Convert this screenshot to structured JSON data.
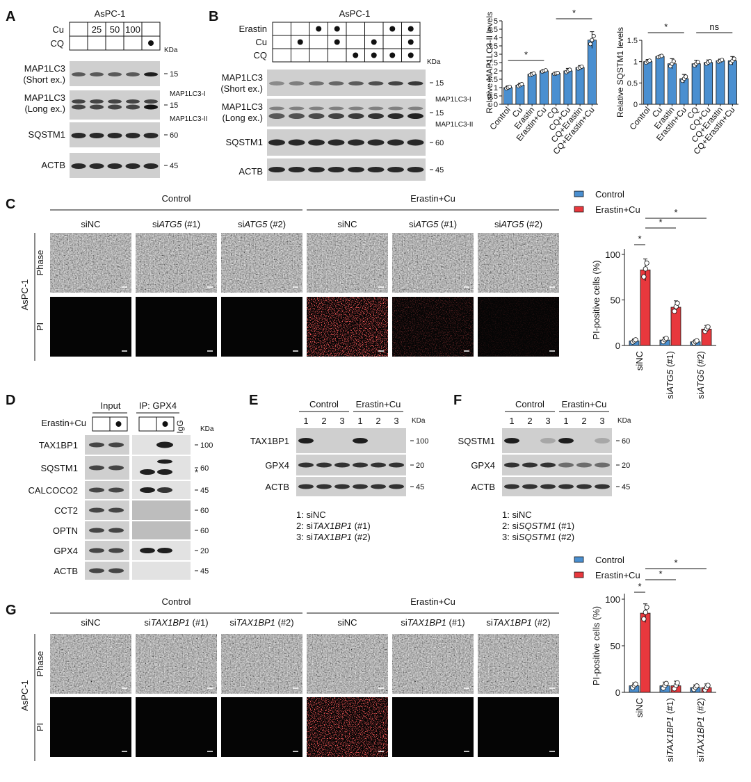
{
  "panelA": {
    "letter": "A",
    "cell_line": "AsPC-1",
    "row_labels": [
      "Cu",
      "CQ"
    ],
    "cu_doses": [
      "",
      "25",
      "50",
      "100",
      ""
    ],
    "cq_marks": [
      false,
      false,
      false,
      false,
      true
    ],
    "kda": "KDa",
    "blots": [
      {
        "label": "MAP1LC3",
        "sub": "(Short ex.)",
        "mw": "15"
      },
      {
        "label": "MAP1LC3",
        "sub": "(Long ex.)",
        "mw": "15",
        "band1": "MAP1LC3-I",
        "band2": "MAP1LC3-II"
      },
      {
        "label": "SQSTM1",
        "mw": "60"
      },
      {
        "label": "ACTB",
        "mw": "45"
      }
    ]
  },
  "panelB": {
    "letter": "B",
    "cell_line": "AsPC-1",
    "row_labels": [
      "Erastin",
      "Cu",
      "CQ"
    ],
    "erastin": [
      false,
      false,
      true,
      true,
      false,
      false,
      true,
      true
    ],
    "cu": [
      false,
      true,
      false,
      true,
      false,
      true,
      false,
      true
    ],
    "cq": [
      false,
      false,
      false,
      false,
      true,
      true,
      true,
      true
    ],
    "kda": "KDa",
    "blots": [
      {
        "label": "MAP1LC3",
        "sub": "(Short ex.)",
        "mw": "15"
      },
      {
        "label": "MAP1LC3",
        "sub": "(Long ex.)",
        "mw": "15",
        "band1": "MAP1LC3-I",
        "band2": "MAP1LC3-II"
      },
      {
        "label": "SQSTM1",
        "mw": "60"
      },
      {
        "label": "ACTB",
        "mw": "45"
      }
    ]
  },
  "chartB1": {
    "chart_data": {
      "type": "bar",
      "ylabel": "Relative MAP1LC3-II levels",
      "ylim": [
        0,
        5
      ],
      "yticks": [
        "0",
        "0.5",
        "1",
        "1.5",
        "2",
        "2.5",
        "3",
        "3.5",
        "4",
        "4.5",
        "5"
      ],
      "categories": [
        "Control",
        "Cu",
        "Erastin",
        "Erastin+Cu",
        "CQ",
        "CQ+Cu",
        "CQ+Erastin",
        "CQ+Erastin+Cu"
      ],
      "values": [
        1.0,
        1.15,
        1.8,
        2.0,
        1.85,
        2.0,
        2.2,
        3.85
      ],
      "errors": [
        0.1,
        0.12,
        0.1,
        0.08,
        0.05,
        0.15,
        0.12,
        0.5
      ],
      "significance": [
        {
          "from": 0,
          "to": 3,
          "label": "*"
        },
        {
          "from": 4,
          "to": 7,
          "label": "*"
        }
      ],
      "color": "#4a8fd0"
    }
  },
  "chartB2": {
    "chart_data": {
      "type": "bar",
      "ylabel": "Relative SQSTM1 levels",
      "ylim": [
        0,
        1.5
      ],
      "yticks": [
        "0",
        "0.5",
        "1",
        "1.5"
      ],
      "categories": [
        "Control",
        "Cu",
        "Erastin",
        "Erastin+Cu",
        "CQ",
        "CQ+Cu",
        "CQ+Erastin",
        "CQ+Erastin+Cu"
      ],
      "values": [
        1.0,
        1.12,
        0.95,
        0.6,
        0.95,
        0.98,
        1.02,
        1.02
      ],
      "errors": [
        0.05,
        0.03,
        0.12,
        0.1,
        0.08,
        0.06,
        0.04,
        0.1
      ],
      "significance": [
        {
          "from": 0,
          "to": 3,
          "label": "*"
        },
        {
          "from": 4,
          "to": 7,
          "label": "ns"
        }
      ],
      "color": "#4a8fd0"
    }
  },
  "panelC": {
    "letter": "C",
    "groups": [
      "Control",
      "Erastin+Cu"
    ],
    "columns": [
      {
        "pre": "siNC",
        "it": "",
        "post": ""
      },
      {
        "pre": "si",
        "it": "ATG5",
        "post": " (#1)"
      },
      {
        "pre": "si",
        "it": "ATG5",
        "post": " (#2)"
      },
      {
        "pre": "siNC",
        "it": "",
        "post": ""
      },
      {
        "pre": "si",
        "it": "ATG5",
        "post": " (#1)"
      },
      {
        "pre": "si",
        "it": "ATG5",
        "post": " (#2)"
      }
    ],
    "side_label": "AsPC-1",
    "rows": [
      "Phase",
      "PI"
    ],
    "pi_intensity": [
      0,
      0,
      0,
      1,
      0.3,
      0.1
    ]
  },
  "chartC": {
    "chart_data": {
      "type": "bar",
      "ylabel": "PI-positive cells (%)",
      "ylim": [
        0,
        100
      ],
      "yticks": [
        "0",
        "50",
        "100"
      ],
      "categories": [
        {
          "pre": "siNC",
          "it": "",
          "post": ""
        },
        {
          "pre": "si",
          "it": "ATG5",
          "post": " (#1)"
        },
        {
          "pre": "si",
          "it": "ATG5",
          "post": " (#2)"
        }
      ],
      "series": [
        {
          "name": "Control",
          "color": "#4a8fd0",
          "values": [
            5,
            6,
            4
          ],
          "errors": [
            2,
            3,
            2
          ]
        },
        {
          "name": "Erastin+Cu",
          "color": "#e8383d",
          "values": [
            83,
            42,
            18
          ],
          "errors": [
            12,
            7,
            4
          ]
        }
      ],
      "significance": [
        "*",
        "*",
        "*"
      ]
    }
  },
  "panelD": {
    "letter": "D",
    "input": "Input",
    "ip": "IP: GPX4",
    "treat": "Erastin+Cu",
    "igg": "IgG",
    "kda": "KDa",
    "star": "*",
    "rows": [
      {
        "label": "TAX1BP1",
        "mw": "100"
      },
      {
        "label": "SQSTM1",
        "mw": "60"
      },
      {
        "label": "CALCOCO2",
        "mw": "45"
      },
      {
        "label": "CCT2",
        "mw": "60"
      },
      {
        "label": "OPTN",
        "mw": "60"
      },
      {
        "label": "GPX4",
        "mw": "20"
      },
      {
        "label": "ACTB",
        "mw": "45"
      }
    ]
  },
  "panelE": {
    "letter": "E",
    "groups": [
      "Control",
      "Erastin+Cu"
    ],
    "lanes": [
      "1",
      "2",
      "3",
      "1",
      "2",
      "3"
    ],
    "kda": "KDa",
    "rows": [
      {
        "label": "TAX1BP1",
        "mw": "100"
      },
      {
        "label": "GPX4",
        "mw": "20"
      },
      {
        "label": "ACTB",
        "mw": "45"
      }
    ],
    "legend": [
      {
        "pre": "1: siNC",
        "it": "",
        "post": ""
      },
      {
        "pre": "2: si",
        "it": "TAX1BP1",
        "post": " (#1)"
      },
      {
        "pre": "3: si",
        "it": "TAX1BP1",
        "post": " (#2)"
      }
    ]
  },
  "panelF": {
    "letter": "F",
    "groups": [
      "Control",
      "Erastin+Cu"
    ],
    "lanes": [
      "1",
      "2",
      "3",
      "1",
      "2",
      "3"
    ],
    "kda": "KDa",
    "rows": [
      {
        "label": "SQSTM1",
        "mw": "60"
      },
      {
        "label": "GPX4",
        "mw": "20"
      },
      {
        "label": "ACTB",
        "mw": "45"
      }
    ],
    "legend": [
      {
        "pre": "1: siNC",
        "it": "",
        "post": ""
      },
      {
        "pre": "2: si",
        "it": "SQSTM1",
        "post": " (#1)"
      },
      {
        "pre": "3: si",
        "it": "SQSTM1",
        "post": " (#2)"
      }
    ]
  },
  "panelG": {
    "letter": "G",
    "groups": [
      "Control",
      "Erastin+Cu"
    ],
    "columns": [
      {
        "pre": "siNC",
        "it": "",
        "post": ""
      },
      {
        "pre": "si",
        "it": "TAX1BP1",
        "post": " (#1)"
      },
      {
        "pre": "si",
        "it": "TAX1BP1",
        "post": " (#2)"
      },
      {
        "pre": "siNC",
        "it": "",
        "post": ""
      },
      {
        "pre": "si",
        "it": "TAX1BP1",
        "post": " (#1)"
      },
      {
        "pre": "si",
        "it": "TAX1BP1",
        "post": " (#2)"
      }
    ],
    "side_label": "AsPC-1",
    "rows": [
      "Phase",
      "PI"
    ],
    "pi_intensity": [
      0,
      0,
      0,
      1,
      0,
      0
    ]
  },
  "chartG": {
    "chart_data": {
      "type": "bar",
      "ylabel": "PI-positive cells (%)",
      "ylim": [
        0,
        100
      ],
      "yticks": [
        "0",
        "50",
        "100"
      ],
      "categories": [
        {
          "pre": "siNC",
          "it": "",
          "post": ""
        },
        {
          "pre": "si",
          "it": "TAX1BP1",
          "post": " (#1)"
        },
        {
          "pre": "si",
          "it": "TAX1BP1",
          "post": " (#2)"
        }
      ],
      "series": [
        {
          "name": "Control",
          "color": "#4a8fd0",
          "values": [
            7,
            7,
            5
          ],
          "errors": [
            3,
            4,
            3
          ]
        },
        {
          "name": "Erastin+Cu",
          "color": "#e8383d",
          "values": [
            85,
            7,
            5
          ],
          "errors": [
            10,
            5,
            4
          ]
        }
      ],
      "significance": [
        "*",
        "*",
        "*"
      ]
    }
  }
}
